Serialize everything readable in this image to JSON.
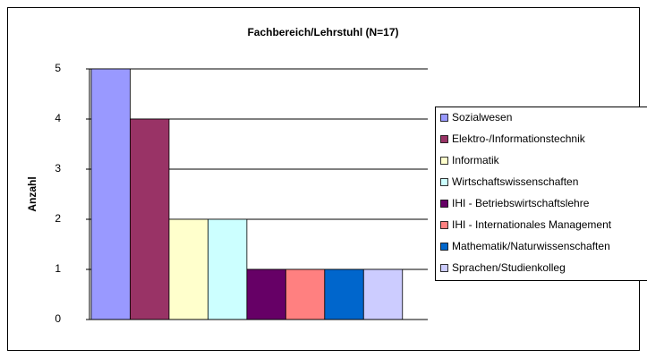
{
  "chart_data": {
    "type": "bar",
    "title": "Fachbereich/Lehrstuhl (N=17)",
    "y_label": "Anzahl",
    "categories": [
      null
    ],
    "series": [
      {
        "name": "Sozialwesen",
        "color": "#9999ff",
        "values": [
          5
        ]
      },
      {
        "name": "Elektro-/Informationstechnik",
        "color": "#993366",
        "values": [
          4
        ]
      },
      {
        "name": "Informatik",
        "color": "#ffffcc",
        "values": [
          2
        ]
      },
      {
        "name": "Wirtschaftswissenschaften",
        "color": "#ccffff",
        "values": [
          2
        ]
      },
      {
        "name": "IHI - Betriebswirtschaftslehre",
        "color": "#660066",
        "values": [
          1
        ]
      },
      {
        "name": "IHI - Internationales Management",
        "color": "#ff8080",
        "values": [
          1
        ]
      },
      {
        "name": "Mathematik/Naturwissenschaften",
        "color": "#0066cc",
        "values": [
          1
        ]
      },
      {
        "name": "Sprachen/Studienkolleg",
        "color": "#ccccff",
        "values": [
          1
        ]
      }
    ],
    "ylim": [
      0,
      5
    ],
    "yticks": [
      0,
      1,
      2,
      3,
      4,
      5
    ],
    "grid": true,
    "legend": "right"
  }
}
